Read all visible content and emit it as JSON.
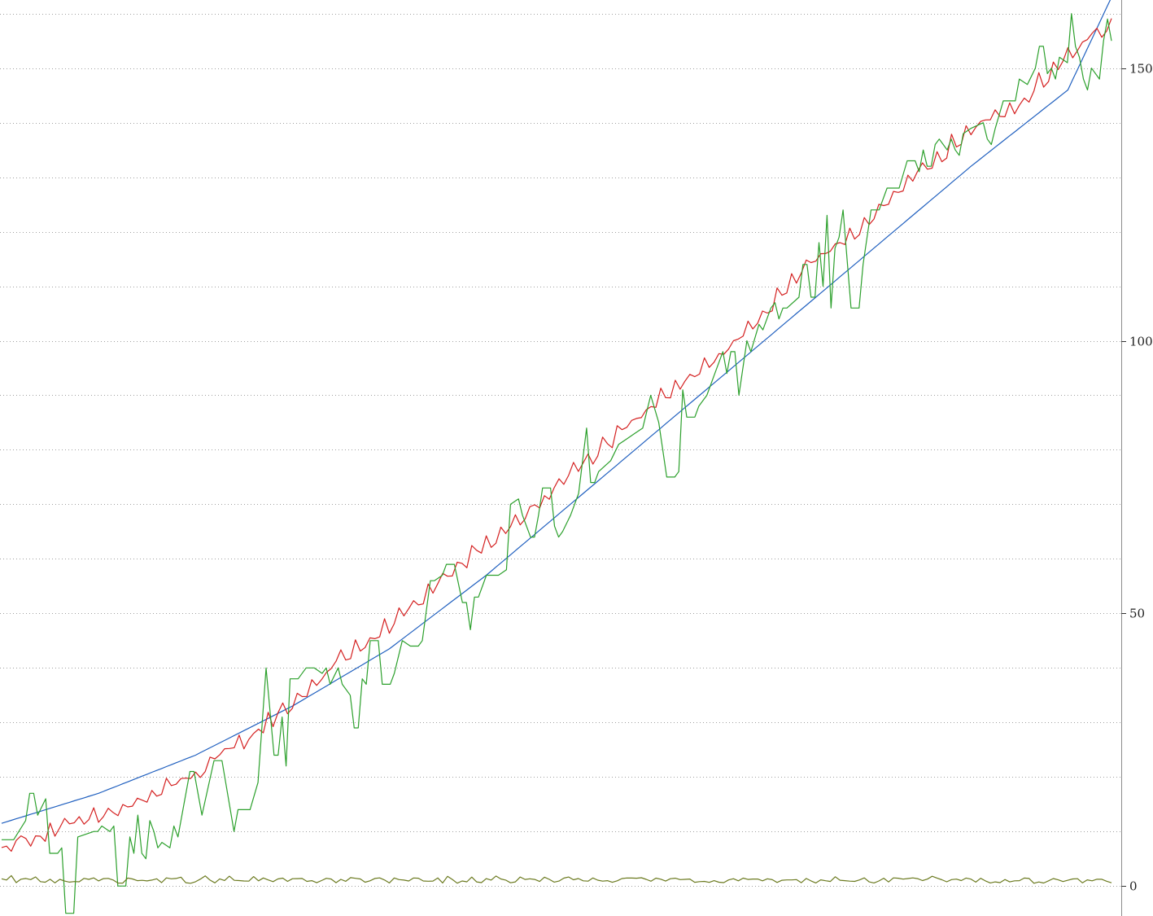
{
  "chart_data": {
    "type": "line",
    "title": "",
    "xlabel": "",
    "ylabel": "",
    "x_count": 230,
    "ylim": [
      -5.5,
      162.5
    ],
    "y_ticks": [
      {
        "value": 150,
        "label": "150"
      },
      {
        "value": 100,
        "label": "100"
      },
      {
        "value": 50,
        "label": "50"
      },
      {
        "value": 0,
        "label": "0"
      }
    ],
    "grid": true,
    "grid_step": 10,
    "legend": "none",
    "y_axis_position": "right",
    "series": [
      {
        "color": "#1f5fbf",
        "anchors": [
          [
            0,
            11.5
          ],
          [
            20,
            17.0
          ],
          [
            40,
            24.0
          ],
          [
            60,
            33.0
          ],
          [
            80,
            43.5
          ],
          [
            100,
            57.0
          ],
          [
            120,
            72.0
          ],
          [
            140,
            87.0
          ],
          [
            160,
            102.0
          ],
          [
            180,
            117.0
          ],
          [
            200,
            132.0
          ],
          [
            220,
            146.0
          ],
          [
            229,
            163.0
          ]
        ]
      },
      {
        "color": "#d42020",
        "anchors": [
          [
            0,
            6.5
          ],
          [
            10,
            9.5
          ],
          [
            20,
            12.0
          ],
          [
            30,
            15.5
          ],
          [
            40,
            20.0
          ],
          [
            50,
            26.0
          ],
          [
            60,
            33.0
          ],
          [
            70,
            41.0
          ],
          [
            80,
            47.0
          ],
          [
            90,
            55.0
          ],
          [
            100,
            62.0
          ],
          [
            110,
            69.0
          ],
          [
            120,
            77.0
          ],
          [
            130,
            84.0
          ],
          [
            140,
            92.0
          ],
          [
            150,
            98.0
          ],
          [
            160,
            107.0
          ],
          [
            170,
            116.0
          ],
          [
            180,
            122.0
          ],
          [
            190,
            131.0
          ],
          [
            200,
            138.0
          ],
          [
            210,
            143.0
          ],
          [
            220,
            152.0
          ],
          [
            229,
            158.0
          ]
        ]
      },
      {
        "color": "#2ca02c",
        "points": [
          [
            0,
            8.5
          ],
          [
            3,
            8.5
          ],
          [
            6,
            12
          ],
          [
            7,
            17
          ],
          [
            8,
            17
          ],
          [
            9,
            13
          ],
          [
            11,
            16
          ],
          [
            12,
            6
          ],
          [
            14,
            6
          ],
          [
            15,
            7
          ],
          [
            16,
            -5
          ],
          [
            18,
            -5
          ],
          [
            19,
            9
          ],
          [
            23,
            10
          ],
          [
            24,
            10
          ],
          [
            25,
            11
          ],
          [
            27,
            10
          ],
          [
            28,
            11
          ],
          [
            29,
            0
          ],
          [
            31,
            0
          ],
          [
            32,
            9
          ],
          [
            33,
            6
          ],
          [
            34,
            13
          ],
          [
            35,
            6
          ],
          [
            36,
            5
          ],
          [
            37,
            12
          ],
          [
            38,
            10
          ],
          [
            39,
            7
          ],
          [
            40,
            8
          ],
          [
            42,
            7
          ],
          [
            43,
            11
          ],
          [
            44,
            9
          ],
          [
            47,
            21
          ],
          [
            48,
            21
          ],
          [
            50,
            13
          ],
          [
            53,
            23
          ],
          [
            55,
            23
          ],
          [
            58,
            10
          ],
          [
            59,
            14
          ],
          [
            61,
            14
          ],
          [
            62,
            14
          ],
          [
            64,
            19
          ],
          [
            66,
            40
          ],
          [
            68,
            24
          ],
          [
            69,
            24
          ],
          [
            70,
            31
          ],
          [
            71,
            22
          ],
          [
            72,
            38
          ],
          [
            74,
            38
          ],
          [
            76,
            40
          ],
          [
            78,
            40
          ],
          [
            80,
            39
          ],
          [
            81,
            40
          ],
          [
            82,
            37
          ],
          [
            84,
            40
          ],
          [
            85,
            37
          ],
          [
            87,
            35
          ],
          [
            88,
            29
          ],
          [
            89,
            29
          ],
          [
            90,
            38
          ],
          [
            91,
            37
          ],
          [
            92,
            45
          ],
          [
            94,
            45
          ],
          [
            95,
            37
          ],
          [
            97,
            37
          ],
          [
            98,
            39
          ],
          [
            100,
            45
          ],
          [
            102,
            44
          ],
          [
            104,
            44
          ],
          [
            105,
            45
          ],
          [
            107,
            56
          ],
          [
            108,
            56
          ],
          [
            110,
            57
          ],
          [
            111,
            59
          ],
          [
            113,
            59
          ],
          [
            115,
            52
          ],
          [
            116,
            52
          ],
          [
            117,
            47
          ],
          [
            118,
            53
          ],
          [
            119,
            53
          ],
          [
            121,
            57
          ],
          [
            124,
            57
          ],
          [
            126,
            58
          ],
          [
            127,
            70
          ],
          [
            129,
            71
          ],
          [
            130,
            68
          ],
          [
            132,
            64
          ],
          [
            133,
            64
          ],
          [
            134,
            68
          ],
          [
            135,
            73
          ],
          [
            137,
            73
          ],
          [
            138,
            66
          ],
          [
            139,
            64
          ],
          [
            140,
            65
          ],
          [
            142,
            68
          ],
          [
            144,
            72
          ],
          [
            146,
            84
          ],
          [
            147,
            74
          ],
          [
            148,
            74
          ],
          [
            149,
            76
          ],
          [
            152,
            78
          ],
          [
            154,
            81
          ],
          [
            156,
            82
          ],
          [
            158,
            83
          ],
          [
            160,
            84
          ],
          [
            162,
            90
          ],
          [
            164,
            85
          ],
          [
            166,
            75
          ],
          [
            168,
            75
          ],
          [
            169,
            76
          ],
          [
            170,
            91
          ],
          [
            171,
            86
          ],
          [
            173,
            86
          ],
          [
            174,
            88
          ],
          [
            176,
            90
          ],
          [
            178,
            94
          ],
          [
            180,
            98
          ],
          [
            181,
            94
          ],
          [
            182,
            98
          ],
          [
            183,
            98
          ],
          [
            184,
            90
          ],
          [
            186,
            100
          ],
          [
            187,
            98
          ],
          [
            189,
            103
          ],
          [
            190,
            102
          ],
          [
            192,
            106
          ],
          [
            193,
            107
          ],
          [
            194,
            104
          ],
          [
            195,
            106
          ],
          [
            196,
            106
          ],
          [
            199,
            108
          ],
          [
            200,
            114
          ],
          [
            201,
            114
          ],
          [
            202,
            108
          ],
          [
            203,
            108
          ],
          [
            204,
            118
          ],
          [
            205,
            110
          ],
          [
            206,
            123
          ],
          [
            207,
            106
          ],
          [
            208,
            117
          ],
          [
            209,
            119
          ],
          [
            210,
            124
          ],
          [
            212,
            106
          ],
          [
            214,
            106
          ],
          [
            215,
            114
          ],
          [
            217,
            124
          ],
          [
            218,
            124
          ],
          [
            219,
            124
          ],
          [
            221,
            128
          ],
          [
            222,
            128
          ],
          [
            224,
            128
          ],
          [
            226,
            133
          ],
          [
            228,
            133
          ],
          [
            229,
            131
          ],
          [
            230,
            135
          ],
          [
            231,
            132
          ],
          [
            232,
            132
          ],
          [
            233,
            136
          ],
          [
            234,
            137
          ],
          [
            235,
            136
          ],
          [
            236,
            135
          ],
          [
            237,
            137
          ],
          [
            238,
            135
          ],
          [
            239,
            134
          ],
          [
            240,
            138
          ],
          [
            242,
            139
          ],
          [
            245,
            140
          ],
          [
            246,
            137
          ],
          [
            247,
            136
          ],
          [
            248,
            139
          ],
          [
            250,
            144
          ],
          [
            252,
            144
          ],
          [
            253,
            144
          ],
          [
            254,
            148
          ],
          [
            256,
            147
          ],
          [
            258,
            150
          ],
          [
            259,
            154
          ],
          [
            260,
            154
          ],
          [
            261,
            149
          ],
          [
            262,
            150
          ],
          [
            263,
            148
          ],
          [
            264,
            152
          ],
          [
            266,
            151
          ],
          [
            267,
            160
          ],
          [
            268,
            154
          ],
          [
            269,
            152
          ],
          [
            270,
            148
          ],
          [
            271,
            146
          ],
          [
            272,
            150
          ],
          [
            273,
            149
          ],
          [
            274,
            148
          ],
          [
            275,
            155
          ],
          [
            276,
            159
          ],
          [
            277,
            155
          ]
        ]
      },
      {
        "color": "#6b7a1f",
        "anchors": [
          [
            0,
            1.0
          ],
          [
            230,
            1.0
          ]
        ]
      }
    ]
  }
}
